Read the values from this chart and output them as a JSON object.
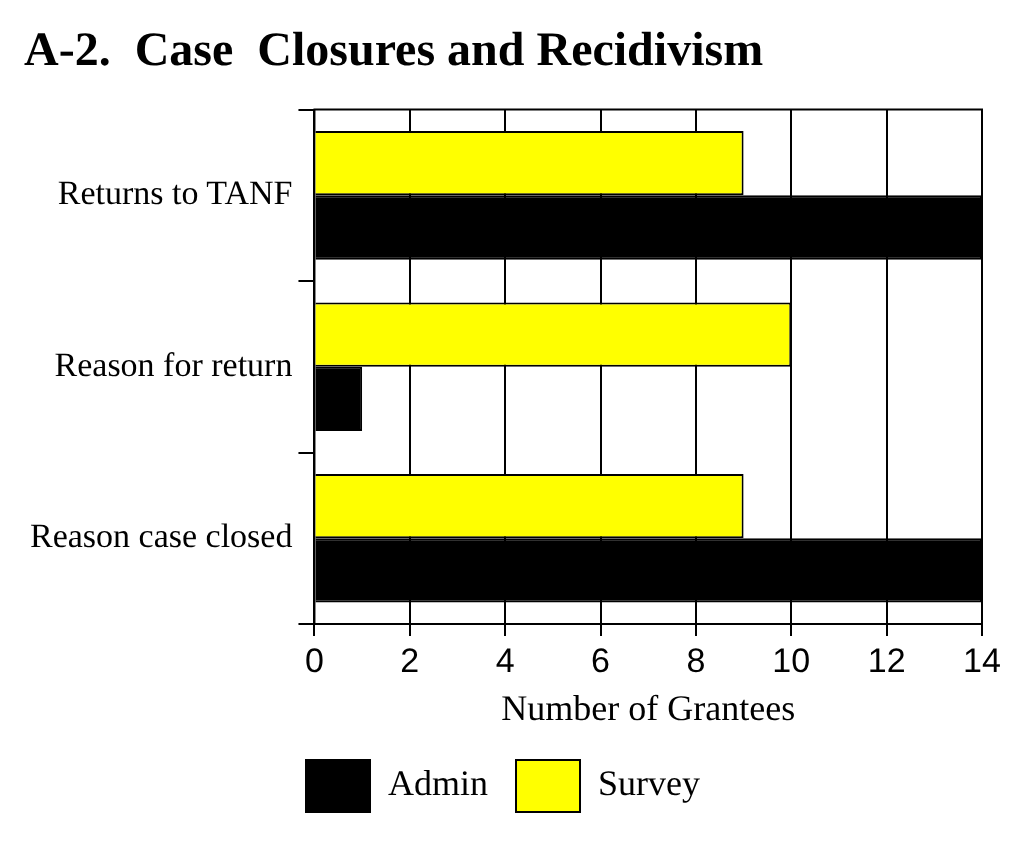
{
  "chart_data": {
    "type": "bar",
    "orientation": "horizontal",
    "title": "A-2.  Case  Closures and Recidivism",
    "xlabel": "Number of Grantees",
    "categories": [
      "Returns to TANF",
      "Reason for return",
      "Reason case closed"
    ],
    "series": [
      {
        "name": "Admin",
        "color": "#000000",
        "values": [
          14,
          1,
          14
        ]
      },
      {
        "name": "Survey",
        "color": "#ffff00",
        "values": [
          9,
          10,
          9
        ]
      }
    ],
    "xlim": [
      0,
      14
    ],
    "xticks": [
      0,
      2,
      4,
      6,
      8,
      10,
      12,
      14
    ],
    "grid": "x",
    "legend": "bottom"
  }
}
